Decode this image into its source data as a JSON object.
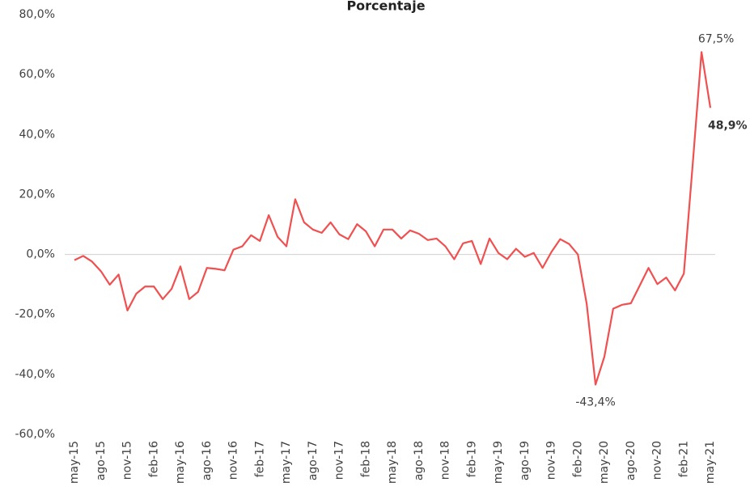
{
  "chart_data": {
    "type": "line",
    "title": "Porcentaje",
    "categories": [
      "may-15",
      null,
      null,
      "ago-15",
      null,
      null,
      "nov-15",
      null,
      null,
      "feb-16",
      null,
      null,
      "may-16",
      null,
      null,
      "ago-16",
      null,
      null,
      "nov-16",
      null,
      null,
      "feb-17",
      null,
      null,
      "may-17",
      null,
      null,
      "ago-17",
      null,
      null,
      "nov-17",
      null,
      null,
      "feb-18",
      null,
      null,
      "may-18",
      null,
      null,
      "ago-18",
      null,
      null,
      "nov-18",
      null,
      null,
      "feb-19",
      null,
      null,
      "may-19",
      null,
      null,
      "ago-19",
      null,
      null,
      "nov-19",
      null,
      null,
      "feb-20",
      null,
      null,
      "may-20",
      null,
      null,
      "ago-20",
      null,
      null,
      "nov-20",
      null,
      null,
      "feb-21",
      null,
      null,
      "may-21"
    ],
    "values": [
      -1.9,
      -0.5,
      -2.4,
      -5.6,
      -10.1,
      -6.7,
      -18.7,
      -13.1,
      -10.7,
      -10.7,
      -14.9,
      -11.5,
      -4.0,
      -14.9,
      -12.5,
      -4.5,
      -4.8,
      -5.3,
      1.6,
      2.7,
      6.4,
      4.5,
      13.1,
      5.9,
      2.7,
      18.4,
      10.7,
      8.3,
      7.2,
      10.7,
      6.7,
      5.1,
      10.1,
      7.7,
      2.7,
      8.3,
      8.3,
      5.3,
      8.0,
      6.9,
      4.8,
      5.3,
      2.7,
      -1.6,
      3.7,
      4.5,
      -3.2,
      5.3,
      0.5,
      -1.6,
      1.9,
      -0.8,
      0.5,
      -4.5,
      0.8,
      5.1,
      3.5,
      0.0,
      -16.5,
      -43.4,
      -34.1,
      -18.1,
      -16.8,
      -16.3,
      -10.4,
      -4.5,
      -9.9,
      -7.7,
      -12.0,
      -6.4,
      30.0,
      67.5,
      48.9
    ],
    "value_labels": [
      null,
      null,
      null,
      null,
      null,
      null,
      null,
      null,
      null,
      null,
      null,
      null,
      null,
      null,
      null,
      null,
      null,
      null,
      null,
      null,
      null,
      null,
      null,
      null,
      null,
      null,
      null,
      null,
      null,
      null,
      null,
      null,
      null,
      null,
      null,
      null,
      null,
      null,
      null,
      null,
      null,
      null,
      null,
      null,
      null,
      null,
      null,
      null,
      null,
      null,
      null,
      null,
      null,
      null,
      null,
      null,
      null,
      null,
      null,
      "-43,4%",
      null,
      null,
      null,
      null,
      null,
      null,
      null,
      null,
      null,
      null,
      null,
      "67,5%",
      "48,9%"
    ],
    "color": "#f05050",
    "ylim": [
      -60,
      80
    ],
    "yticks": [
      {
        "value": -60,
        "label": "-60,0%"
      },
      {
        "value": -40,
        "label": "-40,0%"
      },
      {
        "value": -20,
        "label": "-20,0%"
      },
      {
        "value": 0,
        "label": "0,0%"
      },
      {
        "value": 20,
        "label": "20,0%"
      },
      {
        "value": 40,
        "label": "40,0%"
      },
      {
        "value": 60,
        "label": "60,0%"
      },
      {
        "value": 80,
        "label": "80,0%"
      }
    ],
    "grid": false,
    "zero_line": true
  }
}
